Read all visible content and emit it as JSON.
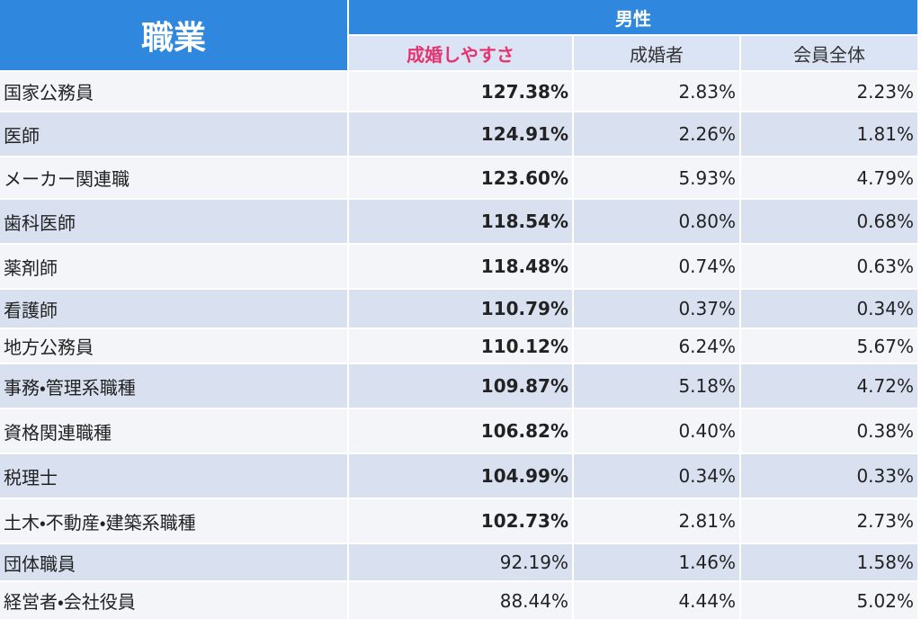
{
  "header": {
    "title": "職業",
    "group": "男性",
    "columns": [
      "成婚しやすさ",
      "成婚者",
      "会員全体"
    ]
  },
  "table": {
    "rows": [
      [
        "国家公務員",
        "127.38%",
        "2.83%",
        "2.23%"
      ],
      [
        "医師",
        "124.91%",
        "2.26%",
        "1.81%"
      ],
      [
        "メーカー関連職",
        "123.60%",
        "5.93%",
        "4.79%"
      ],
      [
        "歯科医師",
        "118.54%",
        "0.80%",
        "0.68%"
      ],
      [
        "薬剤師",
        "118.48%",
        "0.74%",
        "0.63%"
      ],
      [
        "看護師",
        "110.79%",
        "0.37%",
        "0.34%"
      ],
      [
        "地方公務員",
        "110.12%",
        "6.24%",
        "5.67%"
      ],
      [
        "事務・管理系職種",
        "109.87%",
        "5.18%",
        "4.72%"
      ],
      [
        "資格関連職種",
        "106.82%",
        "0.40%",
        "0.38%"
      ],
      [
        "税理士",
        "104.99%",
        "0.34%",
        "0.33%"
      ],
      [
        "土木・不動産・建築系職種",
        "102.73%",
        "2.81%",
        "2.73%"
      ],
      [
        "団体職員",
        "92.19%",
        "1.46%",
        "1.58%"
      ],
      [
        "経営者・会社役員",
        "88.44%",
        "4.44%",
        "5.02%"
      ]
    ]
  }
}
